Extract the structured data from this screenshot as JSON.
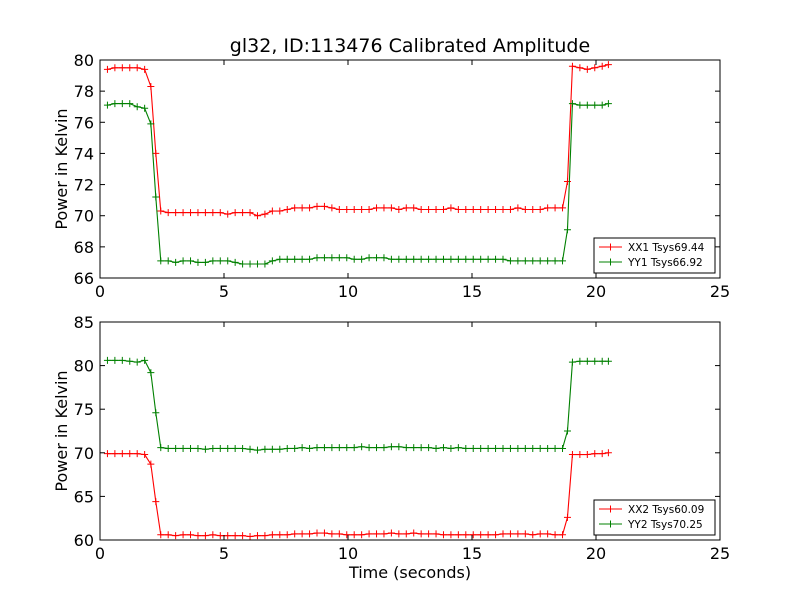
{
  "chart_data": [
    {
      "type": "line",
      "title": "gl32, ID:113476 Calibrated Amplitude",
      "xlabel": "",
      "ylabel": "Power in Kelvin",
      "xlim": [
        0,
        25
      ],
      "ylim": [
        66,
        80
      ],
      "xticks": [
        "0",
        "5",
        "10",
        "15",
        "20",
        "25"
      ],
      "yticks": [
        "66",
        "68",
        "70",
        "72",
        "74",
        "76",
        "78",
        "80"
      ],
      "legend_position": "lower-right",
      "x": [
        0.3,
        0.6,
        0.9,
        1.2,
        1.5,
        1.8,
        2.05,
        2.25,
        2.45,
        2.75,
        3.05,
        3.35,
        3.65,
        3.95,
        4.25,
        4.55,
        4.85,
        5.15,
        5.45,
        5.75,
        6.05,
        6.35,
        6.65,
        6.95,
        7.25,
        7.55,
        7.85,
        8.15,
        8.45,
        8.75,
        9.05,
        9.35,
        9.65,
        9.95,
        10.25,
        10.55,
        10.85,
        11.15,
        11.45,
        11.75,
        12.05,
        12.35,
        12.65,
        12.95,
        13.25,
        13.55,
        13.85,
        14.15,
        14.45,
        14.75,
        15.05,
        15.35,
        15.65,
        15.95,
        16.25,
        16.55,
        16.85,
        17.15,
        17.45,
        17.75,
        18.05,
        18.35,
        18.65,
        18.85,
        19.05,
        19.35,
        19.65,
        19.95,
        20.25,
        20.5
      ],
      "series": [
        {
          "name": "XX1 Tsys69.44",
          "color": "#ff0000",
          "values": [
            79.4,
            79.5,
            79.5,
            79.5,
            79.5,
            79.4,
            78.3,
            74.0,
            70.3,
            70.2,
            70.2,
            70.2,
            70.2,
            70.2,
            70.2,
            70.2,
            70.2,
            70.1,
            70.2,
            70.2,
            70.2,
            70.0,
            70.1,
            70.3,
            70.3,
            70.4,
            70.5,
            70.5,
            70.5,
            70.6,
            70.6,
            70.5,
            70.4,
            70.4,
            70.4,
            70.4,
            70.4,
            70.5,
            70.5,
            70.5,
            70.4,
            70.5,
            70.5,
            70.4,
            70.4,
            70.4,
            70.4,
            70.5,
            70.4,
            70.4,
            70.4,
            70.4,
            70.4,
            70.4,
            70.4,
            70.4,
            70.5,
            70.4,
            70.4,
            70.4,
            70.5,
            70.5,
            70.5,
            72.2,
            79.6,
            79.5,
            79.4,
            79.5,
            79.6,
            79.7
          ]
        },
        {
          "name": "YY1 Tsys66.92",
          "color": "#008000",
          "values": [
            77.1,
            77.2,
            77.2,
            77.2,
            77.0,
            76.9,
            75.9,
            71.2,
            67.1,
            67.1,
            67.0,
            67.1,
            67.1,
            67.0,
            67.0,
            67.1,
            67.1,
            67.1,
            67.0,
            66.9,
            66.9,
            66.9,
            66.9,
            67.1,
            67.2,
            67.2,
            67.2,
            67.2,
            67.2,
            67.3,
            67.3,
            67.3,
            67.3,
            67.3,
            67.2,
            67.2,
            67.3,
            67.3,
            67.3,
            67.2,
            67.2,
            67.2,
            67.2,
            67.2,
            67.2,
            67.2,
            67.2,
            67.2,
            67.2,
            67.2,
            67.2,
            67.2,
            67.2,
            67.2,
            67.2,
            67.1,
            67.1,
            67.1,
            67.1,
            67.1,
            67.1,
            67.1,
            67.1,
            69.1,
            77.2,
            77.1,
            77.1,
            77.1,
            77.1,
            77.2
          ]
        }
      ]
    },
    {
      "type": "line",
      "title": "",
      "xlabel": "Time (seconds)",
      "ylabel": "Power in Kelvin",
      "xlim": [
        0,
        25
      ],
      "ylim": [
        60,
        85
      ],
      "xticks": [
        "0",
        "5",
        "10",
        "15",
        "20",
        "25"
      ],
      "yticks": [
        "60",
        "65",
        "70",
        "75",
        "80",
        "85"
      ],
      "legend_position": "lower-right",
      "x": [
        0.3,
        0.6,
        0.9,
        1.2,
        1.5,
        1.8,
        2.05,
        2.25,
        2.45,
        2.75,
        3.05,
        3.35,
        3.65,
        3.95,
        4.25,
        4.55,
        4.85,
        5.15,
        5.45,
        5.75,
        6.05,
        6.35,
        6.65,
        6.95,
        7.25,
        7.55,
        7.85,
        8.15,
        8.45,
        8.75,
        9.05,
        9.35,
        9.65,
        9.95,
        10.25,
        10.55,
        10.85,
        11.15,
        11.45,
        11.75,
        12.05,
        12.35,
        12.65,
        12.95,
        13.25,
        13.55,
        13.85,
        14.15,
        14.45,
        14.75,
        15.05,
        15.35,
        15.65,
        15.95,
        16.25,
        16.55,
        16.85,
        17.15,
        17.45,
        17.75,
        18.05,
        18.35,
        18.65,
        18.85,
        19.05,
        19.35,
        19.65,
        19.95,
        20.25,
        20.5
      ],
      "series": [
        {
          "name": "XX2 Tsys60.09",
          "color": "#ff0000",
          "values": [
            69.9,
            69.9,
            69.9,
            69.9,
            69.9,
            69.8,
            68.7,
            64.4,
            60.6,
            60.6,
            60.5,
            60.6,
            60.6,
            60.5,
            60.5,
            60.6,
            60.5,
            60.5,
            60.5,
            60.5,
            60.4,
            60.5,
            60.5,
            60.6,
            60.6,
            60.6,
            60.7,
            60.7,
            60.7,
            60.8,
            60.8,
            60.7,
            60.7,
            60.6,
            60.6,
            60.6,
            60.7,
            60.7,
            60.7,
            60.8,
            60.7,
            60.7,
            60.8,
            60.7,
            60.7,
            60.7,
            60.6,
            60.6,
            60.6,
            60.6,
            60.6,
            60.6,
            60.6,
            60.6,
            60.7,
            60.7,
            60.7,
            60.7,
            60.6,
            60.7,
            60.7,
            60.6,
            60.6,
            62.6,
            69.8,
            69.8,
            69.8,
            69.9,
            69.9,
            70.0
          ]
        },
        {
          "name": "YY2 Tsys70.25",
          "color": "#008000",
          "values": [
            80.6,
            80.6,
            80.6,
            80.5,
            80.4,
            80.6,
            79.2,
            74.6,
            70.6,
            70.5,
            70.5,
            70.5,
            70.5,
            70.5,
            70.4,
            70.5,
            70.5,
            70.5,
            70.5,
            70.5,
            70.4,
            70.3,
            70.4,
            70.4,
            70.4,
            70.5,
            70.5,
            70.6,
            70.5,
            70.6,
            70.6,
            70.6,
            70.6,
            70.6,
            70.6,
            70.7,
            70.6,
            70.6,
            70.6,
            70.7,
            70.7,
            70.6,
            70.6,
            70.6,
            70.6,
            70.5,
            70.6,
            70.5,
            70.6,
            70.5,
            70.5,
            70.5,
            70.5,
            70.5,
            70.5,
            70.5,
            70.5,
            70.5,
            70.5,
            70.5,
            70.5,
            70.5,
            70.5,
            72.5,
            80.4,
            80.5,
            80.5,
            80.5,
            80.5,
            80.5
          ]
        }
      ]
    }
  ]
}
